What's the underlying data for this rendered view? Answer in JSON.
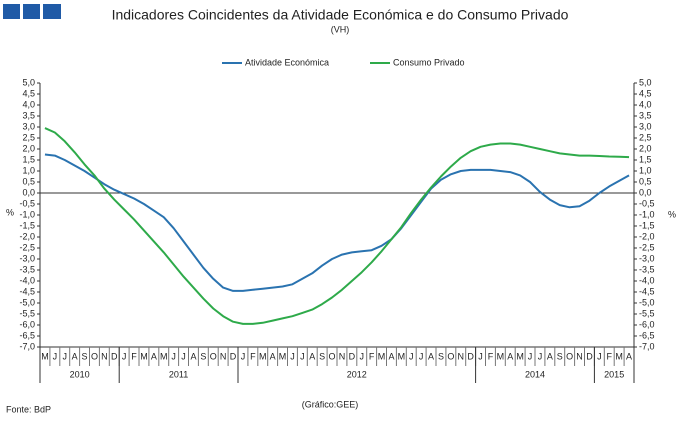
{
  "chart_data": {
    "type": "line",
    "title": "Indicadores Coincidentes da Atividade Económica e do Consumo Privado",
    "subtitle": "(VH)",
    "y_label": "%",
    "y2_label": "%",
    "source": "Fonte: BdP",
    "credit": "(Gráfico:GEE)",
    "categories": [
      "M",
      "J",
      "J",
      "A",
      "S",
      "O",
      "N",
      "D",
      "J",
      "F",
      "M",
      "A",
      "M",
      "J",
      "J",
      "A",
      "S",
      "O",
      "N",
      "D",
      "J",
      "F",
      "M",
      "A",
      "M",
      "J",
      "J",
      "A",
      "S",
      "O",
      "N",
      "D",
      "J",
      "F",
      "M",
      "A",
      "M",
      "J",
      "J",
      "A",
      "S",
      "O",
      "N",
      "D",
      "J",
      "F",
      "M",
      "A",
      "M",
      "J",
      "J",
      "A",
      "S",
      "O",
      "N",
      "D",
      "J",
      "F",
      "M",
      "A"
    ],
    "year_groups": [
      {
        "label": "2010",
        "span": 8
      },
      {
        "label": "2011",
        "span": 12
      },
      {
        "label": "2012",
        "span": 24
      },
      {
        "label": "2014",
        "span": 12
      },
      {
        "label": "2015",
        "span": 4
      }
    ],
    "series": [
      {
        "name": "Atividade Económica",
        "color": "#2a73b0",
        "values": [
          1.75,
          1.7,
          1.5,
          1.25,
          1.0,
          0.7,
          0.4,
          0.15,
          -0.05,
          -0.25,
          -0.5,
          -0.8,
          -1.1,
          -1.6,
          -2.2,
          -2.8,
          -3.4,
          -3.9,
          -4.3,
          -4.45,
          -4.45,
          -4.4,
          -4.35,
          -4.3,
          -4.25,
          -4.15,
          -3.9,
          -3.65,
          -3.3,
          -3.0,
          -2.8,
          -2.7,
          -2.65,
          -2.6,
          -2.4,
          -2.1,
          -1.6,
          -1.0,
          -0.4,
          0.2,
          0.6,
          0.85,
          1.0,
          1.05,
          1.05,
          1.05,
          1.0,
          0.95,
          0.8,
          0.5,
          0.05,
          -0.3,
          -0.55,
          -0.65,
          -0.6,
          -0.35,
          0.0,
          0.3,
          0.55,
          0.8
        ]
      },
      {
        "name": "Consumo Privado",
        "color": "#2eaa4a",
        "values": [
          2.95,
          2.75,
          2.35,
          1.85,
          1.3,
          0.8,
          0.2,
          -0.3,
          -0.75,
          -1.2,
          -1.7,
          -2.2,
          -2.7,
          -3.25,
          -3.8,
          -4.3,
          -4.8,
          -5.25,
          -5.6,
          -5.85,
          -5.95,
          -5.95,
          -5.9,
          -5.8,
          -5.7,
          -5.6,
          -5.45,
          -5.3,
          -5.05,
          -4.75,
          -4.4,
          -4.0,
          -3.6,
          -3.15,
          -2.65,
          -2.1,
          -1.55,
          -0.9,
          -0.3,
          0.25,
          0.75,
          1.2,
          1.6,
          1.9,
          2.1,
          2.2,
          2.25,
          2.25,
          2.2,
          2.1,
          2.0,
          1.9,
          1.8,
          1.75,
          1.7,
          1.7,
          1.68,
          1.66,
          1.65,
          1.63
        ]
      }
    ],
    "ylim": [
      -7,
      5
    ],
    "yticks": [
      {
        "value": 5,
        "label": "5,0"
      },
      {
        "value": 4.5,
        "label": "4,5"
      },
      {
        "value": 4,
        "label": "4,0"
      },
      {
        "value": 3.5,
        "label": "3,5"
      },
      {
        "value": 3,
        "label": "3,0"
      },
      {
        "value": 2.5,
        "label": "2,5"
      },
      {
        "value": 2,
        "label": "2,0"
      },
      {
        "value": 1.5,
        "label": "1,5"
      },
      {
        "value": 1,
        "label": "1,0"
      },
      {
        "value": 0.5,
        "label": "0,5"
      },
      {
        "value": 0,
        "label": "0,0"
      },
      {
        "value": -0.5,
        "label": "-0,5"
      },
      {
        "value": -1,
        "label": "-1,0"
      },
      {
        "value": -1.5,
        "label": "-1,5"
      },
      {
        "value": -2,
        "label": "-2,0"
      },
      {
        "value": -2.5,
        "label": "-2,5"
      },
      {
        "value": -3,
        "label": "-3,0"
      },
      {
        "value": -3.5,
        "label": "-3,5"
      },
      {
        "value": -4,
        "label": "-4,0"
      },
      {
        "value": -4.5,
        "label": "-4,5"
      },
      {
        "value": -5,
        "label": "-5,0"
      },
      {
        "value": -5.5,
        "label": "-5,5"
      },
      {
        "value": -6,
        "label": "-6,0"
      },
      {
        "value": -6.5,
        "label": "-6,5"
      },
      {
        "value": -7,
        "label": "-7,0"
      }
    ],
    "y2lim": [
      -7,
      5
    ],
    "y2ticks": [
      {
        "value": 5,
        "label": "5,0"
      },
      {
        "value": 4.5,
        "label": "4,5"
      },
      {
        "value": 4,
        "label": "4,0"
      },
      {
        "value": 3.5,
        "label": "3,5"
      },
      {
        "value": 3,
        "label": "3,0"
      },
      {
        "value": 2.5,
        "label": "2,5"
      },
      {
        "value": 2,
        "label": "2,0"
      },
      {
        "value": 1.5,
        "label": "1,5"
      },
      {
        "value": 1,
        "label": "1,0"
      },
      {
        "value": 0.5,
        "label": "0,5"
      },
      {
        "value": 0,
        "label": "0,0"
      },
      {
        "value": -0.5,
        "label": "-0,5"
      },
      {
        "value": -1,
        "label": "-1,0"
      },
      {
        "value": -1.5,
        "label": "-1,5"
      },
      {
        "value": -2,
        "label": "-2,0"
      },
      {
        "value": -2.5,
        "label": "-2,5"
      },
      {
        "value": -3,
        "label": "-3,0"
      },
      {
        "value": -3.5,
        "label": "-3,5"
      },
      {
        "value": -4,
        "label": "-4,0"
      },
      {
        "value": -4.5,
        "label": "-4,5"
      },
      {
        "value": -5,
        "label": "-5,0"
      },
      {
        "value": -5.5,
        "label": "-5,5"
      },
      {
        "value": -6,
        "label": "-6,0"
      },
      {
        "value": -6.5,
        "label": "-6,5"
      },
      {
        "value": -7,
        "label": "-7,0"
      }
    ],
    "legend": "top"
  }
}
